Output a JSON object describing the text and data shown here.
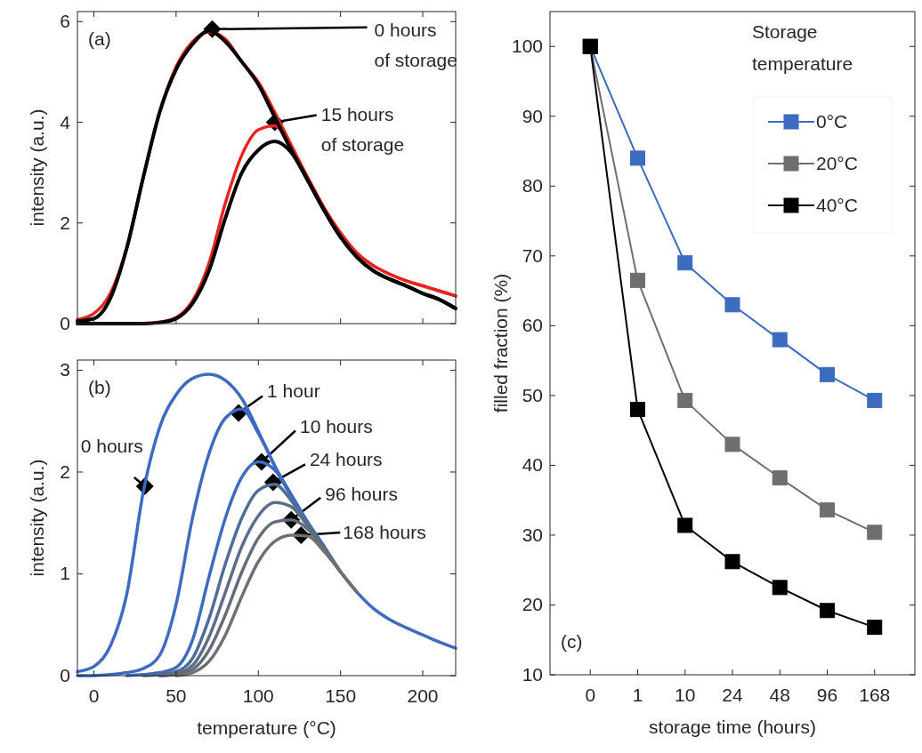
{
  "chart_data": [
    {
      "type": "line",
      "ylabel": "intensity (a.u.)",
      "xlim": [
        -10,
        220
      ],
      "xticks": [
        0,
        50,
        100,
        150,
        200
      ],
      "ylim": [
        0,
        6.2
      ],
      "yticks": [
        0,
        2,
        4,
        6
      ],
      "tick_labels": "y",
      "grid": false,
      "x": [
        -10,
        0,
        10,
        20,
        30,
        40,
        50,
        60,
        70,
        80,
        90,
        100,
        110,
        120,
        130,
        140,
        150,
        160,
        170,
        180,
        190,
        200,
        210,
        220
      ],
      "series": [
        {
          "color": "#e8241c",
          "values": [
            0.08,
            0.2,
            0.6,
            1.5,
            2.9,
            4.2,
            5.1,
            5.6,
            5.8,
            5.65,
            5.2,
            4.8,
            4.2,
            3.55,
            2.9,
            2.3,
            1.8,
            1.4,
            1.15,
            0.98,
            0.85,
            0.75,
            0.65,
            0.55
          ]
        },
        {
          "color": "#e8241c",
          "values": [
            null,
            null,
            null,
            null,
            0,
            0.03,
            0.12,
            0.45,
            1.2,
            2.4,
            3.35,
            3.85,
            3.93,
            3.5,
            2.9,
            2.3,
            1.8,
            1.4,
            1.15,
            0.98,
            0.85,
            0.75,
            0.65,
            0.55
          ]
        },
        {
          "color": "#000000",
          "values": [
            0.05,
            0.1,
            0.5,
            1.5,
            2.9,
            4.2,
            5.05,
            5.55,
            5.82,
            5.6,
            5.2,
            4.75,
            4.1,
            3.45,
            2.85,
            2.25,
            1.72,
            1.32,
            1.05,
            0.88,
            0.75,
            0.6,
            0.48,
            0.3
          ]
        },
        {
          "color": "#000000",
          "values": [
            0,
            0,
            0,
            0,
            0,
            0.02,
            0.1,
            0.4,
            1.05,
            2.1,
            3.0,
            3.45,
            3.62,
            3.4,
            2.85,
            2.25,
            1.72,
            1.32,
            1.05,
            0.88,
            0.75,
            0.6,
            0.48,
            0.3
          ]
        }
      ],
      "annotations": [
        "(a)",
        {
          "text": "0 hours\nof storage",
          "x": 72,
          "y": 5.85
        },
        {
          "text": "15 hours\nof storage",
          "x": 110,
          "y": 4.0
        }
      ]
    },
    {
      "type": "line",
      "xlabel": "temperature (°C)",
      "ylabel": "intensity (a.u.)",
      "xlim": [
        -10,
        220
      ],
      "xticks": [
        0,
        50,
        100,
        150,
        200
      ],
      "ylim": [
        0,
        3.1
      ],
      "yticks": [
        0,
        1,
        2,
        3
      ],
      "grid": false,
      "x": [
        -10,
        0,
        10,
        20,
        30,
        40,
        50,
        60,
        70,
        80,
        90,
        100,
        110,
        120,
        130,
        140,
        150,
        160,
        170,
        180,
        190,
        200,
        210,
        220
      ],
      "series": [
        {
          "color": "#3d6bbf",
          "values": [
            0.04,
            0.09,
            0.29,
            0.8,
            1.8,
            2.44,
            2.76,
            2.92,
            2.96,
            2.9,
            2.72,
            2.4,
            2.06,
            1.78,
            1.51,
            1.27,
            1.02,
            0.82,
            0.66,
            0.55,
            0.47,
            0.4,
            0.33,
            0.27
          ]
        },
        {
          "color": "#3d6bbf",
          "values": [
            0,
            0,
            0.01,
            0.03,
            0.07,
            0.2,
            0.7,
            1.55,
            2.18,
            2.53,
            2.62,
            2.38,
            2.06,
            null,
            null,
            null,
            null,
            null,
            null,
            null,
            null,
            null,
            null,
            null
          ]
        },
        {
          "color": "#3d6bbf",
          "values": [
            null,
            null,
            null,
            0,
            0.01,
            0.03,
            0.08,
            0.35,
            0.97,
            1.55,
            1.95,
            2.1,
            2.02,
            1.76,
            1.5,
            1.27,
            null,
            null,
            null,
            null,
            null,
            null,
            null,
            null
          ]
        },
        {
          "color": "#506c98",
          "values": [
            null,
            null,
            null,
            null,
            0,
            0.01,
            0.04,
            0.17,
            0.56,
            1.1,
            1.55,
            1.82,
            1.88,
            1.72,
            1.49,
            1.26,
            1.02,
            null,
            null,
            null,
            null,
            null,
            null,
            null
          ]
        },
        {
          "color": "#5b6d88",
          "values": [
            null,
            null,
            null,
            null,
            null,
            0,
            0.02,
            0.1,
            0.38,
            0.82,
            1.27,
            1.57,
            1.7,
            1.66,
            1.47,
            1.25,
            1.02,
            null,
            null,
            null,
            null,
            null,
            null,
            null
          ]
        },
        {
          "color": "#646c78",
          "values": [
            null,
            null,
            null,
            null,
            null,
            0,
            0.01,
            0.06,
            0.25,
            0.6,
            1.02,
            1.35,
            1.51,
            1.53,
            1.44,
            1.24,
            1.02,
            0.82,
            null,
            null,
            null,
            null,
            null,
            null
          ]
        },
        {
          "color": "#707070",
          "values": [
            null,
            null,
            null,
            null,
            null,
            null,
            0,
            0.03,
            0.14,
            0.4,
            0.78,
            1.12,
            1.32,
            1.38,
            1.37,
            1.22,
            1.02,
            0.82,
            null,
            null,
            null,
            null,
            null,
            null
          ]
        }
      ],
      "annotations": [
        "(b)",
        {
          "text": "0 hours",
          "x": 31,
          "y": 1.86
        },
        {
          "text": "1 hour",
          "x": 88,
          "y": 2.58
        },
        {
          "text": "10 hours",
          "x": 102,
          "y": 2.1
        },
        {
          "text": "24 hours",
          "x": 109,
          "y": 1.9
        },
        {
          "text": "96 hours",
          "x": 120,
          "y": 1.53
        },
        {
          "text": "168 hours",
          "x": 126,
          "y": 1.38
        }
      ]
    },
    {
      "type": "line",
      "xlabel": "storage time (hours)",
      "ylabel": "filled fraction (%)",
      "categories": [
        "0",
        "1",
        "10",
        "24",
        "48",
        "96",
        "168"
      ],
      "ylim": [
        10,
        105
      ],
      "yticks": [
        10,
        20,
        30,
        40,
        50,
        60,
        70,
        80,
        90,
        100
      ],
      "grid": false,
      "marker": "square",
      "legend": "top right",
      "legend_title": "Storage\ntemperature",
      "series": [
        {
          "name": "0°C",
          "color": "#3d6bbf",
          "values": [
            100,
            84,
            69,
            63,
            58,
            53,
            49.3
          ]
        },
        {
          "name": "20°C",
          "color": "#6e6e6e",
          "values": [
            100,
            66.5,
            49.3,
            43,
            38.2,
            33.6,
            30.4
          ]
        },
        {
          "name": "40°C",
          "color": "#000000",
          "values": [
            100,
            48,
            31.4,
            26.2,
            22.5,
            19.2,
            16.8
          ]
        }
      ],
      "annotations": [
        "(c)"
      ]
    }
  ]
}
